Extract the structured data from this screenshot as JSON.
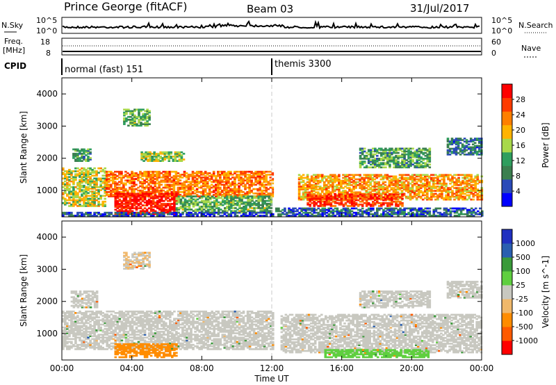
{
  "header": {
    "title": "Prince George (fitACF)",
    "beam": "Beam 03",
    "date": "31/Jul/2017"
  },
  "top_panels": {
    "nsky_label": "N.Sky",
    "nsearch_label": "N.Search",
    "noise_ticks_left": [
      "10^5",
      "10^0"
    ],
    "noise_ticks_right": [
      "10^5",
      "10^0"
    ],
    "freq_label_1": "Freq.",
    "freq_label_2": "[MHz]",
    "freq_ticks": [
      "18",
      "8"
    ],
    "nave_label": "Nave",
    "nave_ticks": [
      "60",
      "0"
    ],
    "cpid_label": "CPID",
    "cpid_segments": [
      {
        "name": "normal (fast) 151",
        "start_hour": 0
      },
      {
        "name": "themis 3300",
        "start_hour": 12
      }
    ]
  },
  "colors": {
    "power_scale": [
      "#0000ff",
      "#2a4ab8",
      "#3b7f4f",
      "#2f9e5e",
      "#a8d84a",
      "#ffb300",
      "#ff7f00",
      "#ff3b00",
      "#ff0000"
    ],
    "velocity_scale": [
      "#ff0000",
      "#ff5a00",
      "#ff8c00",
      "#f0b86b",
      "#c8c8c0",
      "#5fcf3f",
      "#3a9a3a",
      "#2a5fb0",
      "#2030c0"
    ]
  },
  "chart_data": [
    {
      "type": "heatmap",
      "name": "power",
      "xlabel": "Time UT",
      "ylabel": "Slant Range [km]",
      "xlim": [
        0,
        24
      ],
      "ylim": [
        180,
        4500
      ],
      "x_ticks": [
        "00:00",
        "04:00",
        "08:00",
        "12:00",
        "16:00",
        "20:00",
        "00:00"
      ],
      "y_ticks": [
        1000,
        2000,
        3000,
        4000
      ],
      "colorbar_label": "Power [dB]",
      "colorbar_ticks": [
        "4",
        "8",
        "12",
        "16",
        "20",
        "24",
        "28"
      ],
      "colorbar_range": [
        0,
        30
      ],
      "regions": [
        {
          "t0": 0.0,
          "t1": 2.5,
          "r0": 500,
          "r1": 1700,
          "value": 16
        },
        {
          "t0": 0.6,
          "t1": 1.6,
          "r0": 1900,
          "r1": 2300,
          "value": 10
        },
        {
          "t0": 2.5,
          "t1": 12.0,
          "r0": 800,
          "r1": 1600,
          "value": 22
        },
        {
          "t0": 3.0,
          "t1": 6.5,
          "r0": 250,
          "r1": 900,
          "value": 28
        },
        {
          "t0": 3.5,
          "t1": 5.0,
          "r0": 3000,
          "r1": 3500,
          "value": 12
        },
        {
          "t0": 4.5,
          "t1": 7.0,
          "r0": 1900,
          "r1": 2200,
          "value": 14
        },
        {
          "t0": 6.5,
          "t1": 12.0,
          "r0": 300,
          "r1": 800,
          "value": 12
        },
        {
          "t0": 0.0,
          "t1": 12.0,
          "r0": 200,
          "r1": 330,
          "value": 5
        },
        {
          "t0": 12.2,
          "t1": 24.0,
          "r0": 200,
          "r1": 450,
          "value": 6
        },
        {
          "t0": 13.5,
          "t1": 24.0,
          "r0": 700,
          "r1": 1500,
          "value": 20
        },
        {
          "t0": 14.0,
          "t1": 19.5,
          "r0": 500,
          "r1": 900,
          "value": 26
        },
        {
          "t0": 17.0,
          "t1": 21.0,
          "r0": 1700,
          "r1": 2300,
          "value": 11
        },
        {
          "t0": 22.0,
          "t1": 24.0,
          "r0": 2100,
          "r1": 2600,
          "value": 8
        }
      ]
    },
    {
      "type": "heatmap",
      "name": "velocity",
      "xlabel": "Time UT",
      "ylabel": "Slant Range [km]",
      "xlim": [
        0,
        24
      ],
      "ylim": [
        180,
        4500
      ],
      "x_ticks": [
        "00:00",
        "04:00",
        "08:00",
        "12:00",
        "16:00",
        "20:00",
        "00:00"
      ],
      "y_ticks": [
        1000,
        2000,
        3000,
        4000
      ],
      "colorbar_label": "Velocity [m s^-1]",
      "colorbar_ticks": [
        "1000",
        "500",
        "100",
        "25",
        "-25",
        "-100",
        "-500",
        "-1000"
      ],
      "regions": [
        {
          "t0": 0.0,
          "t1": 12.0,
          "r0": 500,
          "r1": 1700,
          "value": 0
        },
        {
          "t0": 0.5,
          "t1": 2.0,
          "r0": 1800,
          "r1": 2300,
          "value": 0
        },
        {
          "t0": 3.0,
          "t1": 6.5,
          "r0": 250,
          "r1": 700,
          "value": -200
        },
        {
          "t0": 3.5,
          "t1": 5.0,
          "r0": 3000,
          "r1": 3500,
          "value": -20
        },
        {
          "t0": 12.5,
          "t1": 24.0,
          "r0": 400,
          "r1": 1600,
          "value": 0
        },
        {
          "t0": 15.0,
          "t1": 21.0,
          "r0": 250,
          "r1": 500,
          "value": 60
        },
        {
          "t0": 17.0,
          "t1": 21.0,
          "r0": 1800,
          "r1": 2300,
          "value": 0
        },
        {
          "t0": 22.0,
          "t1": 24.0,
          "r0": 2100,
          "r1": 2600,
          "value": 0
        }
      ]
    }
  ]
}
